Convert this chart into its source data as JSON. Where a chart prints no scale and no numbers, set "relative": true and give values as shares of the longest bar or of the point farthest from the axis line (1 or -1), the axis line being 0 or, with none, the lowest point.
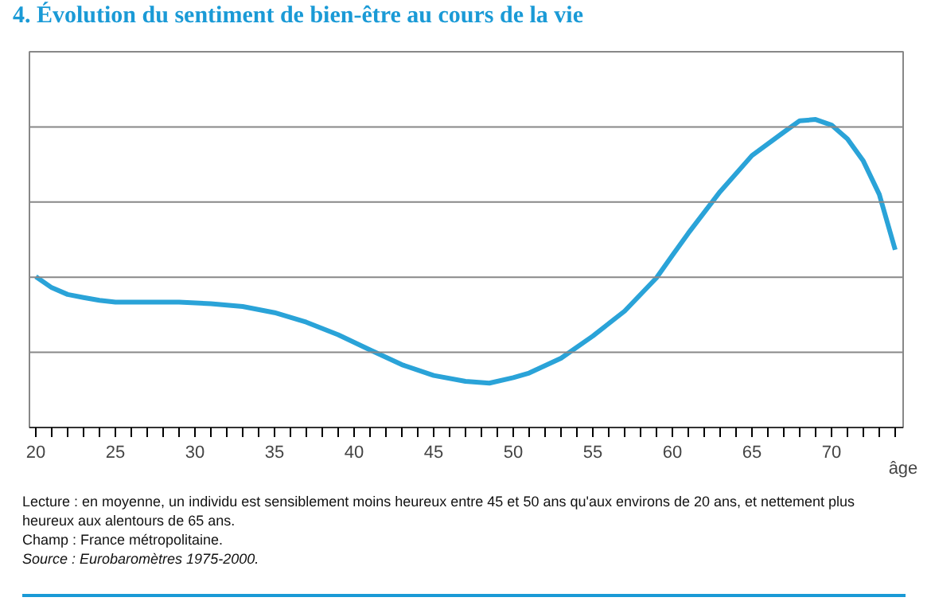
{
  "chart_data": {
    "type": "line",
    "relative": true,
    "title": "4. Évolution du sentiment de bien-être au cours de la vie",
    "xlabel": "âge",
    "x": [
      20,
      21,
      22,
      23,
      24,
      25,
      27,
      29,
      31,
      33,
      35,
      37,
      39,
      41,
      43,
      45,
      47,
      48.5,
      50,
      51,
      53,
      55,
      57,
      59,
      60,
      61,
      63,
      65,
      67,
      68,
      69,
      70,
      71,
      72,
      73,
      74
    ],
    "series": [
      {
        "color": "#2aa3d8",
        "values": [
          0.49,
          0.454,
          0.432,
          0.422,
          0.413,
          0.407,
          0.407,
          0.407,
          0.402,
          0.393,
          0.373,
          0.342,
          0.301,
          0.252,
          0.204,
          0.169,
          0.15,
          0.144,
          0.162,
          0.177,
          0.225,
          0.297,
          0.378,
          0.486,
          0.559,
          0.631,
          0.766,
          0.883,
          0.959,
          0.996,
          1,
          0.982,
          0.937,
          0.865,
          0.757,
          0.577
        ]
      }
    ],
    "xlim": [
      19.6,
      74.5
    ],
    "xticks": [
      20,
      25,
      30,
      35,
      40,
      45,
      50,
      55,
      60,
      65,
      70
    ],
    "grid": "y",
    "marker": "none",
    "line_style": "solid",
    "annotations": [
      "Lecture : en moyenne, un individu est sensiblement moins heureux entre 45 et 50 ans qu'aux environs de 20 ans, et nettement plus heureux aux alentours de 65 ans.",
      "Champ : France métropolitaine.",
      "Source : Eurobaromètres 1975-2000."
    ]
  }
}
